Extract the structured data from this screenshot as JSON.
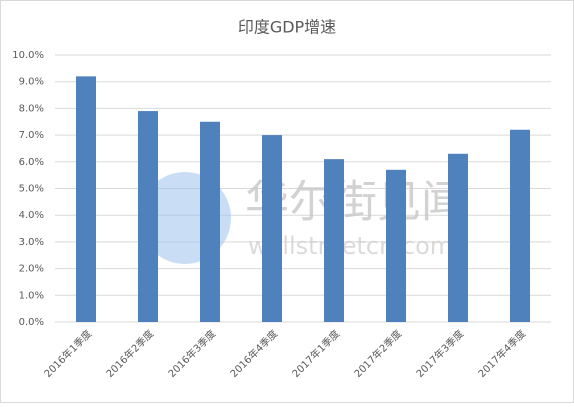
{
  "chart_data": {
    "type": "bar",
    "title": "印度GDP增速",
    "categories": [
      "2016年1季度",
      "2016年2季度",
      "2016年3季度",
      "2016年4季度",
      "2017年1季度",
      "2017年2季度",
      "2017年3季度",
      "2017年4季度"
    ],
    "values": [
      9.2,
      7.9,
      7.5,
      7.0,
      6.1,
      5.7,
      6.3,
      7.2
    ],
    "color": "#4f81bd",
    "ylim": [
      0,
      10
    ],
    "yticks": [
      {
        "value": 0,
        "label": "0.0%"
      },
      {
        "value": 1,
        "label": "1.0%"
      },
      {
        "value": 2,
        "label": "2.0%"
      },
      {
        "value": 3,
        "label": "3.0%"
      },
      {
        "value": 4,
        "label": "4.0%"
      },
      {
        "value": 5,
        "label": "5.0%"
      },
      {
        "value": 6,
        "label": "6.0%"
      },
      {
        "value": 7,
        "label": "7.0%"
      },
      {
        "value": 8,
        "label": "8.0%"
      },
      {
        "value": 9,
        "label": "9.0%"
      },
      {
        "value": 10,
        "label": "10.0%"
      }
    ],
    "grid": true,
    "watermark": {
      "name": "华尔街见闻",
      "site": "wallstreetcn.com"
    }
  }
}
